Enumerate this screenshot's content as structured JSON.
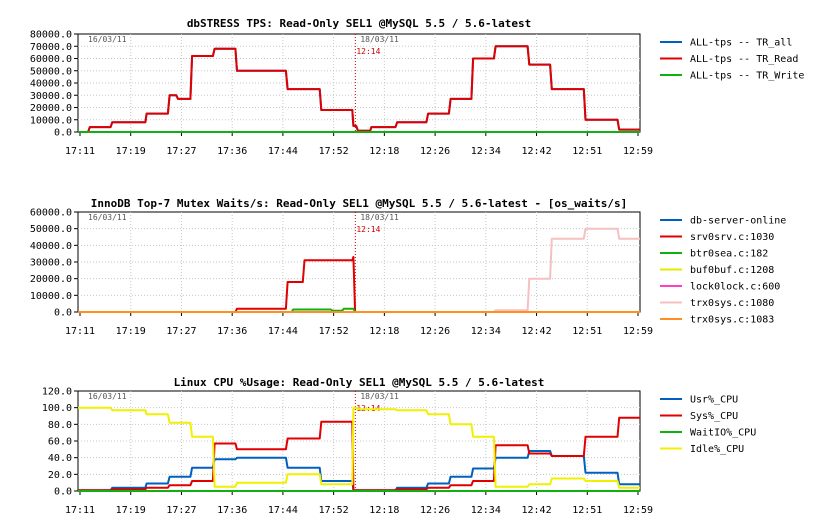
{
  "chart_data": [
    {
      "type": "line",
      "title": "dbSTRESS TPS: Read-Only SEL1 @MySQL 5.5 / 5.6-latest",
      "ylim": [
        0,
        80000
      ],
      "yticks": [
        "0.0",
        "10000.0",
        "20000.0",
        "30000.0",
        "40000.0",
        "50000.0",
        "60000.0",
        "70000.0",
        "80000.0"
      ],
      "xticks": [
        "17:11",
        "17:19",
        "17:27",
        "17:36",
        "17:44",
        "17:52",
        "12:18",
        "12:26",
        "12:34",
        "12:42",
        "12:51",
        "12:59"
      ],
      "left_date": "16/03/11",
      "right_date": "18/03/11",
      "split_label": "12:14",
      "grid": true,
      "legend_position": "right",
      "series": [
        {
          "name": "ALL-tps -- TR_all",
          "color": "#0060c0",
          "x": [
            0,
            0.018,
            0.021,
            0.058,
            0.061,
            0.12,
            0.122,
            0.16,
            0.163,
            0.175,
            0.178,
            0.2,
            0.203,
            0.24,
            0.243,
            0.28,
            0.283,
            0.37,
            0.373,
            0.43,
            0.433,
            0.488,
            0.49,
            0.495,
            0.498,
            0.52,
            0.522,
            0.565,
            0.568,
            0.62,
            0.623,
            0.66,
            0.663,
            0.7,
            0.703,
            0.74,
            0.743,
            0.8,
            0.803,
            0.84,
            0.843,
            0.9,
            0.903,
            0.96,
            0.963,
            1
          ],
          "y": [
            0,
            0,
            4000,
            4000,
            8000,
            8000,
            15000,
            15000,
            30000,
            30000,
            27000,
            27000,
            62000,
            62000,
            68000,
            68000,
            50000,
            50000,
            35000,
            35000,
            18000,
            18000,
            5000,
            5000,
            1000,
            1000,
            4000,
            4000,
            8000,
            8000,
            15000,
            15000,
            27000,
            27000,
            60000,
            60000,
            70000,
            70000,
            55000,
            55000,
            35000,
            35000,
            10000,
            10000,
            2000,
            2000
          ]
        },
        {
          "name": "ALL-tps -- TR_Read",
          "color": "#e00000",
          "x": [
            0,
            0.018,
            0.021,
            0.058,
            0.061,
            0.12,
            0.122,
            0.16,
            0.163,
            0.175,
            0.178,
            0.2,
            0.203,
            0.24,
            0.243,
            0.28,
            0.283,
            0.37,
            0.373,
            0.43,
            0.433,
            0.488,
            0.49,
            0.495,
            0.498,
            0.52,
            0.522,
            0.565,
            0.568,
            0.62,
            0.623,
            0.66,
            0.663,
            0.7,
            0.703,
            0.74,
            0.743,
            0.8,
            0.803,
            0.84,
            0.843,
            0.9,
            0.903,
            0.96,
            0.963,
            1
          ],
          "y": [
            0,
            0,
            4000,
            4000,
            8000,
            8000,
            15000,
            15000,
            30000,
            30000,
            27000,
            27000,
            62000,
            62000,
            68000,
            68000,
            50000,
            50000,
            35000,
            35000,
            18000,
            18000,
            5000,
            5000,
            1000,
            1000,
            4000,
            4000,
            8000,
            8000,
            15000,
            15000,
            27000,
            27000,
            60000,
            60000,
            70000,
            70000,
            55000,
            55000,
            35000,
            35000,
            10000,
            10000,
            2000,
            2000
          ]
        },
        {
          "name": "ALL-tps -- TR_Write",
          "color": "#10b010",
          "x": [
            0,
            1
          ],
          "y": [
            0,
            0
          ]
        }
      ]
    },
    {
      "type": "line",
      "title": "InnoDB Top-7 Mutex Waits/s: Read-Only SEL1 @MySQL 5.5 / 5.6-latest - [os_waits/s]",
      "ylim": [
        0,
        60000
      ],
      "yticks": [
        "0.0",
        "10000.0",
        "20000.0",
        "30000.0",
        "40000.0",
        "50000.0",
        "60000.0"
      ],
      "xticks": [
        "17:11",
        "17:19",
        "17:27",
        "17:36",
        "17:44",
        "17:52",
        "12:18",
        "12:26",
        "12:34",
        "12:42",
        "12:51",
        "12:59"
      ],
      "left_date": "16/03/11",
      "right_date": "18/03/11",
      "split_label": "12:14",
      "grid": true,
      "legend_position": "right",
      "series": [
        {
          "name": "db-server-online",
          "color": "#0060c0",
          "x": [
            0,
            1
          ],
          "y": [
            0,
            0
          ]
        },
        {
          "name": "srv0srv.c:1030",
          "color": "#e00000",
          "x": [
            0,
            0.28,
            0.283,
            0.37,
            0.373,
            0.4,
            0.403,
            0.488,
            0.49,
            0.493,
            1
          ],
          "y": [
            0,
            0,
            2000,
            2000,
            18000,
            18000,
            31000,
            31000,
            33000,
            0,
            0
          ]
        },
        {
          "name": "btr0sea.c:182",
          "color": "#10b010",
          "x": [
            0,
            0.38,
            0.383,
            0.45,
            0.453,
            0.47,
            0.473,
            0.49,
            0.493,
            1
          ],
          "y": [
            0,
            0,
            1500,
            1500,
            700,
            700,
            2000,
            2000,
            0,
            0
          ]
        },
        {
          "name": "buf0buf.c:1208",
          "color": "#e8e800",
          "x": [
            0,
            1
          ],
          "y": [
            0,
            0
          ]
        },
        {
          "name": "lock0lock.c:600",
          "color": "#ff40c0",
          "x": [
            0,
            1
          ],
          "y": [
            0,
            0
          ]
        },
        {
          "name": "trx0sys.c:1080",
          "color": "#f5c0c0",
          "x": [
            0,
            0.74,
            0.743,
            0.8,
            0.803,
            0.84,
            0.843,
            0.9,
            0.903,
            0.96,
            0.963,
            1
          ],
          "y": [
            0,
            0,
            1000,
            1000,
            20000,
            20000,
            44000,
            44000,
            50000,
            50000,
            44000,
            44000
          ]
        },
        {
          "name": "trx0sys.c:1083",
          "color": "#ff9020",
          "x": [
            0,
            1
          ],
          "y": [
            0,
            0
          ]
        }
      ]
    },
    {
      "type": "line",
      "title": "Linux CPU %Usage: Read-Only SEL1 @MySQL 5.5 / 5.6-latest",
      "ylim": [
        0,
        120
      ],
      "yticks": [
        "0.0",
        "20.0",
        "40.0",
        "60.0",
        "80.0",
        "100.0",
        "120.0"
      ],
      "xticks": [
        "17:11",
        "17:19",
        "17:27",
        "17:36",
        "17:44",
        "17:52",
        "12:18",
        "12:26",
        "12:34",
        "12:42",
        "12:51",
        "12:59"
      ],
      "left_date": "16/03/11",
      "right_date": "18/03/11",
      "split_label": "12:14",
      "grid": true,
      "legend_position": "right",
      "series": [
        {
          "name": "Usr%_CPU",
          "color": "#0060c0",
          "x": [
            0,
            0.058,
            0.061,
            0.12,
            0.122,
            0.16,
            0.163,
            0.2,
            0.203,
            0.24,
            0.243,
            0.28,
            0.283,
            0.37,
            0.373,
            0.43,
            0.433,
            0.488,
            0.49,
            0.495,
            0.498,
            0.565,
            0.568,
            0.62,
            0.623,
            0.66,
            0.663,
            0.7,
            0.703,
            0.74,
            0.743,
            0.8,
            0.803,
            0.84,
            0.843,
            0.9,
            0.903,
            0.96,
            0.963,
            1
          ],
          "y": [
            1,
            1,
            4,
            4,
            9,
            9,
            17,
            17,
            28,
            28,
            38,
            38,
            40,
            40,
            28,
            28,
            12,
            12,
            1,
            1,
            1,
            1,
            4,
            4,
            9,
            9,
            17,
            17,
            27,
            27,
            40,
            40,
            48,
            48,
            42,
            42,
            22,
            22,
            8,
            8
          ]
        },
        {
          "name": "Sys%_CPU",
          "color": "#e00000",
          "x": [
            0,
            0.058,
            0.061,
            0.12,
            0.122,
            0.16,
            0.163,
            0.2,
            0.203,
            0.24,
            0.243,
            0.28,
            0.283,
            0.37,
            0.373,
            0.43,
            0.433,
            0.488,
            0.49,
            0.495,
            0.498,
            0.565,
            0.568,
            0.62,
            0.623,
            0.66,
            0.663,
            0.7,
            0.703,
            0.74,
            0.743,
            0.8,
            0.803,
            0.84,
            0.843,
            0.9,
            0.903,
            0.96,
            0.963,
            1
          ],
          "y": [
            1,
            1,
            2,
            2,
            4,
            4,
            7,
            7,
            12,
            12,
            57,
            57,
            50,
            50,
            63,
            63,
            83,
            83,
            1,
            1,
            1,
            1,
            2,
            2,
            4,
            4,
            7,
            7,
            12,
            12,
            55,
            55,
            45,
            45,
            42,
            42,
            65,
            65,
            88,
            88
          ]
        },
        {
          "name": "WaitIO%_CPU",
          "color": "#10b010",
          "x": [
            0,
            1
          ],
          "y": [
            0,
            0
          ]
        },
        {
          "name": "Idle%_CPU",
          "color": "#f0f000",
          "x": [
            0,
            0.058,
            0.061,
            0.12,
            0.122,
            0.16,
            0.163,
            0.2,
            0.203,
            0.24,
            0.243,
            0.28,
            0.283,
            0.37,
            0.373,
            0.43,
            0.433,
            0.488,
            0.49,
            0.495,
            0.498,
            0.565,
            0.568,
            0.62,
            0.623,
            0.66,
            0.663,
            0.7,
            0.703,
            0.74,
            0.743,
            0.8,
            0.803,
            0.84,
            0.843,
            0.9,
            0.903,
            0.96,
            0.963,
            1
          ],
          "y": [
            100,
            100,
            97,
            97,
            92,
            92,
            82,
            82,
            65,
            65,
            5,
            5,
            10,
            10,
            20,
            20,
            8,
            8,
            100,
            100,
            98,
            98,
            97,
            97,
            92,
            92,
            80,
            80,
            65,
            65,
            5,
            5,
            8,
            8,
            15,
            15,
            12,
            12,
            4,
            4
          ]
        }
      ]
    }
  ]
}
